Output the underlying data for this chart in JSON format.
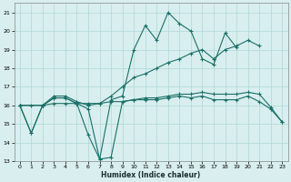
{
  "x": [
    0,
    1,
    2,
    3,
    4,
    5,
    6,
    7,
    8,
    9,
    10,
    11,
    12,
    13,
    14,
    15,
    16,
    17,
    18,
    19,
    20,
    21,
    22,
    23
  ],
  "line1": [
    16.0,
    14.5,
    16.0,
    16.4,
    16.4,
    16.1,
    15.8,
    13.1,
    13.2,
    16.2,
    16.3,
    16.3,
    16.3,
    16.4,
    16.5,
    16.4,
    16.5,
    16.3,
    16.3,
    16.3,
    16.5,
    16.2,
    15.8,
    15.1
  ],
  "line2": [
    16.0,
    14.5,
    16.0,
    16.4,
    16.4,
    16.1,
    14.4,
    13.1,
    16.3,
    16.5,
    19.0,
    20.3,
    19.5,
    21.0,
    20.4,
    20.0,
    18.5,
    18.2,
    19.9,
    19.1,
    null,
    null,
    null,
    null
  ],
  "line3": [
    16.0,
    null,
    16.0,
    16.5,
    16.5,
    16.2,
    16.0,
    16.1,
    16.5,
    17.0,
    17.5,
    17.7,
    18.0,
    18.3,
    18.5,
    18.8,
    19.0,
    18.5,
    19.0,
    19.2,
    19.5,
    19.2,
    null,
    null
  ],
  "line4": [
    16.0,
    16.0,
    16.0,
    16.1,
    16.1,
    16.1,
    16.1,
    16.1,
    16.2,
    16.2,
    16.3,
    16.4,
    16.4,
    16.5,
    16.6,
    16.6,
    16.7,
    16.6,
    16.6,
    16.6,
    16.7,
    16.6,
    15.9,
    15.1
  ],
  "background_color": "#d9eeee",
  "grid_color": "#afd8d8",
  "line_color": "#1a7068",
  "xlabel": "Humidex (Indice chaleur)",
  "ylim_min": 13,
  "ylim_max": 21.5,
  "xlim_min": -0.5,
  "xlim_max": 23.5,
  "yticks": [
    13,
    14,
    15,
    16,
    17,
    18,
    19,
    20,
    21
  ],
  "xticks": [
    0,
    1,
    2,
    3,
    4,
    5,
    6,
    7,
    8,
    9,
    10,
    11,
    12,
    13,
    14,
    15,
    16,
    17,
    18,
    19,
    20,
    21,
    22,
    23
  ]
}
